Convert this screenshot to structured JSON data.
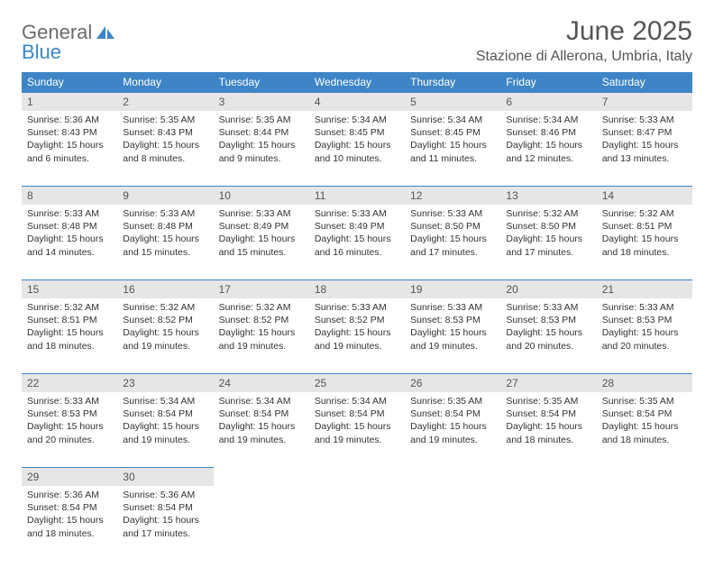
{
  "logo": {
    "line1": "General",
    "line2": "Blue"
  },
  "title": "June 2025",
  "location": "Stazione di Allerona, Umbria, Italy",
  "colors": {
    "header_bg": "#3d85c6",
    "header_text": "#ffffff",
    "daynum_bg": "#e6e6e6",
    "text": "#333333",
    "title_text": "#555555",
    "logo_gray": "#6b6b6b",
    "logo_blue": "#3d85c6"
  },
  "weekdays": [
    "Sunday",
    "Monday",
    "Tuesday",
    "Wednesday",
    "Thursday",
    "Friday",
    "Saturday"
  ],
  "weeks": [
    [
      {
        "n": "1",
        "sr": "5:36 AM",
        "ss": "8:43 PM",
        "dl": "15 hours and 6 minutes."
      },
      {
        "n": "2",
        "sr": "5:35 AM",
        "ss": "8:43 PM",
        "dl": "15 hours and 8 minutes."
      },
      {
        "n": "3",
        "sr": "5:35 AM",
        "ss": "8:44 PM",
        "dl": "15 hours and 9 minutes."
      },
      {
        "n": "4",
        "sr": "5:34 AM",
        "ss": "8:45 PM",
        "dl": "15 hours and 10 minutes."
      },
      {
        "n": "5",
        "sr": "5:34 AM",
        "ss": "8:45 PM",
        "dl": "15 hours and 11 minutes."
      },
      {
        "n": "6",
        "sr": "5:34 AM",
        "ss": "8:46 PM",
        "dl": "15 hours and 12 minutes."
      },
      {
        "n": "7",
        "sr": "5:33 AM",
        "ss": "8:47 PM",
        "dl": "15 hours and 13 minutes."
      }
    ],
    [
      {
        "n": "8",
        "sr": "5:33 AM",
        "ss": "8:48 PM",
        "dl": "15 hours and 14 minutes."
      },
      {
        "n": "9",
        "sr": "5:33 AM",
        "ss": "8:48 PM",
        "dl": "15 hours and 15 minutes."
      },
      {
        "n": "10",
        "sr": "5:33 AM",
        "ss": "8:49 PM",
        "dl": "15 hours and 15 minutes."
      },
      {
        "n": "11",
        "sr": "5:33 AM",
        "ss": "8:49 PM",
        "dl": "15 hours and 16 minutes."
      },
      {
        "n": "12",
        "sr": "5:33 AM",
        "ss": "8:50 PM",
        "dl": "15 hours and 17 minutes."
      },
      {
        "n": "13",
        "sr": "5:32 AM",
        "ss": "8:50 PM",
        "dl": "15 hours and 17 minutes."
      },
      {
        "n": "14",
        "sr": "5:32 AM",
        "ss": "8:51 PM",
        "dl": "15 hours and 18 minutes."
      }
    ],
    [
      {
        "n": "15",
        "sr": "5:32 AM",
        "ss": "8:51 PM",
        "dl": "15 hours and 18 minutes."
      },
      {
        "n": "16",
        "sr": "5:32 AM",
        "ss": "8:52 PM",
        "dl": "15 hours and 19 minutes."
      },
      {
        "n": "17",
        "sr": "5:32 AM",
        "ss": "8:52 PM",
        "dl": "15 hours and 19 minutes."
      },
      {
        "n": "18",
        "sr": "5:33 AM",
        "ss": "8:52 PM",
        "dl": "15 hours and 19 minutes."
      },
      {
        "n": "19",
        "sr": "5:33 AM",
        "ss": "8:53 PM",
        "dl": "15 hours and 19 minutes."
      },
      {
        "n": "20",
        "sr": "5:33 AM",
        "ss": "8:53 PM",
        "dl": "15 hours and 20 minutes."
      },
      {
        "n": "21",
        "sr": "5:33 AM",
        "ss": "8:53 PM",
        "dl": "15 hours and 20 minutes."
      }
    ],
    [
      {
        "n": "22",
        "sr": "5:33 AM",
        "ss": "8:53 PM",
        "dl": "15 hours and 20 minutes."
      },
      {
        "n": "23",
        "sr": "5:34 AM",
        "ss": "8:54 PM",
        "dl": "15 hours and 19 minutes."
      },
      {
        "n": "24",
        "sr": "5:34 AM",
        "ss": "8:54 PM",
        "dl": "15 hours and 19 minutes."
      },
      {
        "n": "25",
        "sr": "5:34 AM",
        "ss": "8:54 PM",
        "dl": "15 hours and 19 minutes."
      },
      {
        "n": "26",
        "sr": "5:35 AM",
        "ss": "8:54 PM",
        "dl": "15 hours and 19 minutes."
      },
      {
        "n": "27",
        "sr": "5:35 AM",
        "ss": "8:54 PM",
        "dl": "15 hours and 18 minutes."
      },
      {
        "n": "28",
        "sr": "5:35 AM",
        "ss": "8:54 PM",
        "dl": "15 hours and 18 minutes."
      }
    ],
    [
      {
        "n": "29",
        "sr": "5:36 AM",
        "ss": "8:54 PM",
        "dl": "15 hours and 18 minutes."
      },
      {
        "n": "30",
        "sr": "5:36 AM",
        "ss": "8:54 PM",
        "dl": "15 hours and 17 minutes."
      },
      null,
      null,
      null,
      null,
      null
    ]
  ],
  "labels": {
    "sunrise": "Sunrise:",
    "sunset": "Sunset:",
    "daylight": "Daylight:"
  }
}
